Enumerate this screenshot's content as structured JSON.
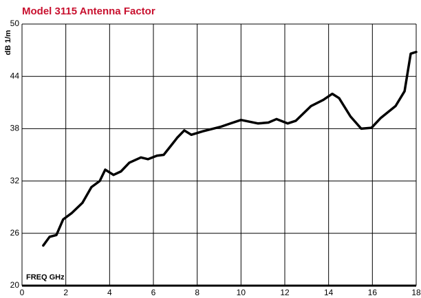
{
  "chart_data": {
    "type": "line",
    "title": "Model 3115 Antenna Factor",
    "title_color": "#c8102e",
    "ylabel": "dB 1/m",
    "xlabel": "FREQ  GHz",
    "x": [
      0.97,
      1.26,
      1.57,
      1.88,
      2.26,
      2.76,
      3.17,
      3.55,
      3.8,
      4.18,
      4.52,
      4.9,
      5.43,
      5.75,
      6.16,
      6.47,
      6.85,
      7.1,
      7.41,
      7.73,
      8.26,
      9.05,
      9.52,
      10.0,
      10.78,
      11.25,
      11.62,
      12.13,
      12.5,
      13.2,
      13.76,
      14.17,
      14.48,
      15.0,
      15.49,
      15.96,
      16.37,
      17.06,
      17.47,
      17.75,
      18.0
    ],
    "series": [
      {
        "name": "Antenna Factor",
        "color": "#000000",
        "values": [
          24.6,
          25.6,
          25.8,
          27.6,
          28.3,
          29.5,
          31.3,
          32.0,
          33.3,
          32.7,
          33.1,
          34.1,
          34.7,
          34.5,
          34.9,
          35.0,
          36.2,
          37.0,
          37.8,
          37.3,
          37.7,
          38.2,
          38.6,
          39.0,
          38.6,
          38.7,
          39.1,
          38.6,
          38.9,
          40.6,
          41.3,
          42.0,
          41.5,
          39.4,
          38.0,
          38.1,
          39.2,
          40.6,
          42.3,
          46.6,
          46.8
        ]
      }
    ],
    "xlim": [
      0,
      18
    ],
    "xticks": [
      0,
      2,
      4,
      6,
      8,
      10,
      12,
      14,
      16,
      18
    ],
    "ylim": [
      20,
      50
    ],
    "yticks": [
      20,
      26,
      32,
      38,
      44,
      50
    ],
    "grid": true
  }
}
